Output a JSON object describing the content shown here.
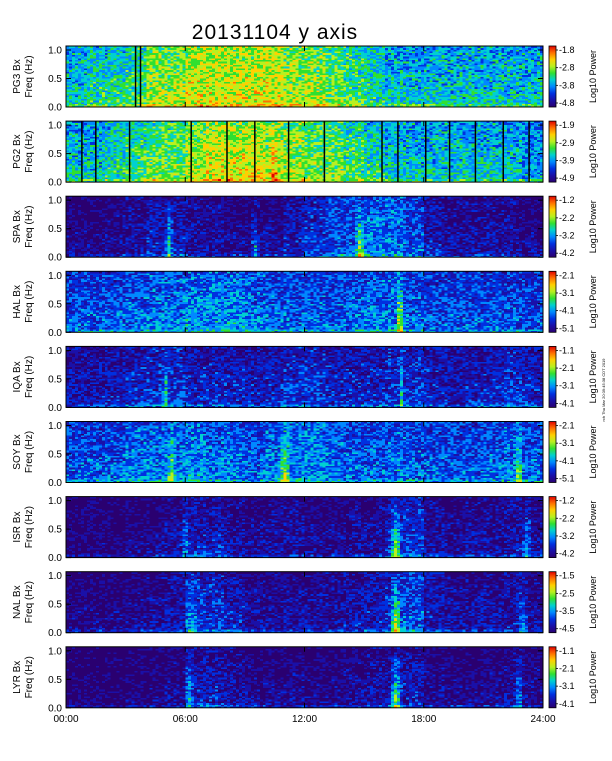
{
  "chart_data": {
    "type": "heatmap",
    "title": "20131104 y axis",
    "x_ticks": [
      "00:00",
      "06:00",
      "12:00",
      "18:00",
      "24:00"
    ],
    "x_range_hours": [
      0,
      24
    ],
    "y_ticks": [
      "0.0",
      "0.5",
      "1.0"
    ],
    "y_range_hz": [
      0,
      1.0
    ],
    "colorbar_label": "Log10 Power",
    "side_note": "rch Thu Mar 20 09:45:38 CDT 2019",
    "color_palette": [
      "#2a0070",
      "#1a10a8",
      "#0030e0",
      "#0088ff",
      "#00d0d0",
      "#30e030",
      "#b8f020",
      "#ffd000",
      "#ff7000",
      "#e00000"
    ],
    "panels": [
      {
        "station": "PG3",
        "label_top": "PG3 Bx",
        "label_bottom": "Freq (Hz)",
        "cb_ticks": [
          "-1.8",
          "-2.8",
          "-3.8",
          "-4.8"
        ],
        "level": 0.55,
        "level_by_hour": [
          0.45,
          0.5,
          0.5,
          0.55,
          0.65,
          0.65,
          0.7,
          0.7,
          0.7,
          0.7,
          0.7,
          0.65,
          0.65,
          0.6,
          0.55,
          0.5,
          0.45,
          0.45,
          0.45,
          0.45,
          0.45,
          0.45,
          0.45,
          0.45
        ],
        "bursts": [],
        "gaps": [
          3.5,
          3.75
        ]
      },
      {
        "station": "PG2",
        "label_top": "PG2 Bx",
        "label_bottom": "Freq (Hz)",
        "cb_ticks": [
          "-1.9",
          "-2.9",
          "-3.9",
          "-4.9"
        ],
        "level": 0.55,
        "level_by_hour": [
          0.45,
          0.45,
          0.5,
          0.55,
          0.6,
          0.6,
          0.65,
          0.7,
          0.7,
          0.7,
          0.65,
          0.65,
          0.6,
          0.6,
          0.55,
          0.5,
          0.45,
          0.45,
          0.45,
          0.45,
          0.45,
          0.45,
          0.45,
          0.4
        ],
        "bursts": [
          {
            "hour": 10.5,
            "amp": 0.25,
            "width": 0.3
          }
        ],
        "gaps": [
          0.8,
          1.5,
          3.2,
          6.3,
          8.1,
          9.5,
          11.2,
          13.0,
          15.9,
          16.7,
          18.1,
          19.3,
          20.6,
          22.0,
          23.3
        ]
      },
      {
        "station": "SPA",
        "label_top": "SPA Bx",
        "label_bottom": "Freq (Hz)",
        "cb_ticks": [
          "-1.2",
          "-2.2",
          "-3.2",
          "-4.2"
        ],
        "level": 0.18,
        "level_by_hour": [
          0.1,
          0.1,
          0.12,
          0.15,
          0.2,
          0.2,
          0.15,
          0.15,
          0.12,
          0.12,
          0.12,
          0.2,
          0.25,
          0.3,
          0.3,
          0.35,
          0.35,
          0.3,
          0.2,
          0.15,
          0.15,
          0.15,
          0.15,
          0.12
        ],
        "bursts": [
          {
            "hour": 5.2,
            "amp": 0.35,
            "width": 0.2
          },
          {
            "hour": 9.5,
            "amp": 0.35,
            "width": 0.2
          },
          {
            "hour": 14.8,
            "amp": 0.4,
            "width": 0.3
          }
        ],
        "gaps": []
      },
      {
        "station": "HAL",
        "label_top": "HAL Bx",
        "label_bottom": "Freq (Hz)",
        "cb_ticks": [
          "-2.1",
          "-3.1",
          "-4.1",
          "-5.1"
        ],
        "level": 0.32,
        "level_by_hour": [
          0.3,
          0.3,
          0.3,
          0.32,
          0.35,
          0.35,
          0.38,
          0.38,
          0.38,
          0.35,
          0.32,
          0.32,
          0.32,
          0.32,
          0.32,
          0.35,
          0.35,
          0.32,
          0.3,
          0.3,
          0.3,
          0.3,
          0.3,
          0.28
        ],
        "bursts": [
          {
            "hour": 16.8,
            "amp": 0.6,
            "width": 0.15
          }
        ],
        "gaps": []
      },
      {
        "station": "IQA",
        "label_top": "IQA Bx",
        "label_bottom": "Freq (Hz)",
        "cb_ticks": [
          "-1.1",
          "-2.1",
          "-3.1",
          "-4.1"
        ],
        "level": 0.22,
        "level_by_hour": [
          0.18,
          0.18,
          0.2,
          0.22,
          0.25,
          0.25,
          0.22,
          0.22,
          0.22,
          0.2,
          0.22,
          0.25,
          0.25,
          0.22,
          0.22,
          0.22,
          0.25,
          0.25,
          0.22,
          0.2,
          0.2,
          0.22,
          0.25,
          0.22
        ],
        "bursts": [
          {
            "hour": 5.0,
            "amp": 0.3,
            "width": 0.2
          },
          {
            "hour": 16.9,
            "amp": 0.3,
            "width": 0.1
          }
        ],
        "gaps": []
      },
      {
        "station": "SOY",
        "label_top": "SOY Bx",
        "label_bottom": "Freq (Hz)",
        "cb_ticks": [
          "-2.1",
          "-3.1",
          "-4.1",
          "-5.1"
        ],
        "level": 0.32,
        "level_by_hour": [
          0.3,
          0.3,
          0.32,
          0.35,
          0.35,
          0.35,
          0.38,
          0.35,
          0.35,
          0.32,
          0.35,
          0.38,
          0.38,
          0.35,
          0.32,
          0.32,
          0.32,
          0.32,
          0.3,
          0.3,
          0.3,
          0.32,
          0.35,
          0.32
        ],
        "bursts": [
          {
            "hour": 5.3,
            "amp": 0.3,
            "width": 0.3
          },
          {
            "hour": 11.0,
            "amp": 0.3,
            "width": 0.3
          },
          {
            "hour": 16.8,
            "amp": 0.35,
            "width": 0.1
          },
          {
            "hour": 22.8,
            "amp": 0.35,
            "width": 0.2
          }
        ],
        "gaps": []
      },
      {
        "station": "ISR",
        "label_top": "ISR Bx",
        "label_bottom": "Freq (Hz)",
        "cb_ticks": [
          "-1.2",
          "-2.2",
          "-3.2",
          "-4.2"
        ],
        "level": 0.12,
        "level_by_hour": [
          0.08,
          0.08,
          0.08,
          0.1,
          0.12,
          0.15,
          0.2,
          0.2,
          0.15,
          0.12,
          0.15,
          0.15,
          0.12,
          0.12,
          0.15,
          0.15,
          0.2,
          0.25,
          0.15,
          0.12,
          0.15,
          0.15,
          0.18,
          0.15
        ],
        "bursts": [
          {
            "hour": 6.0,
            "amp": 0.2,
            "width": 0.3
          },
          {
            "hour": 16.6,
            "amp": 0.55,
            "width": 0.35
          },
          {
            "hour": 23.2,
            "amp": 0.3,
            "width": 0.3
          }
        ],
        "gaps": []
      },
      {
        "station": "NAL",
        "label_top": "NAL Bx",
        "label_bottom": "Freq (Hz)",
        "cb_ticks": [
          "-1.5",
          "-2.5",
          "-3.5",
          "-4.5"
        ],
        "level": 0.15,
        "level_by_hour": [
          0.1,
          0.1,
          0.1,
          0.12,
          0.15,
          0.18,
          0.25,
          0.25,
          0.2,
          0.15,
          0.15,
          0.15,
          0.15,
          0.15,
          0.18,
          0.2,
          0.25,
          0.3,
          0.2,
          0.15,
          0.15,
          0.15,
          0.18,
          0.15
        ],
        "bursts": [
          {
            "hour": 6.3,
            "amp": 0.25,
            "width": 0.3
          },
          {
            "hour": 16.6,
            "amp": 0.5,
            "width": 0.35
          },
          {
            "hour": 23.0,
            "amp": 0.25,
            "width": 0.3
          }
        ],
        "gaps": []
      },
      {
        "station": "LYR",
        "label_top": "LYR Bx",
        "label_bottom": "Freq (Hz)",
        "cb_ticks": [
          "-1.1",
          "-2.1",
          "-3.1",
          "-4.1"
        ],
        "level": 0.1,
        "level_by_hour": [
          0.06,
          0.06,
          0.06,
          0.08,
          0.1,
          0.12,
          0.2,
          0.2,
          0.15,
          0.12,
          0.12,
          0.12,
          0.1,
          0.1,
          0.12,
          0.15,
          0.15,
          0.2,
          0.12,
          0.1,
          0.1,
          0.12,
          0.15,
          0.12
        ],
        "bursts": [
          {
            "hour": 6.2,
            "amp": 0.25,
            "width": 0.3
          },
          {
            "hour": 16.6,
            "amp": 0.55,
            "width": 0.35
          },
          {
            "hour": 22.8,
            "amp": 0.25,
            "width": 0.3
          }
        ],
        "gaps": []
      }
    ]
  }
}
